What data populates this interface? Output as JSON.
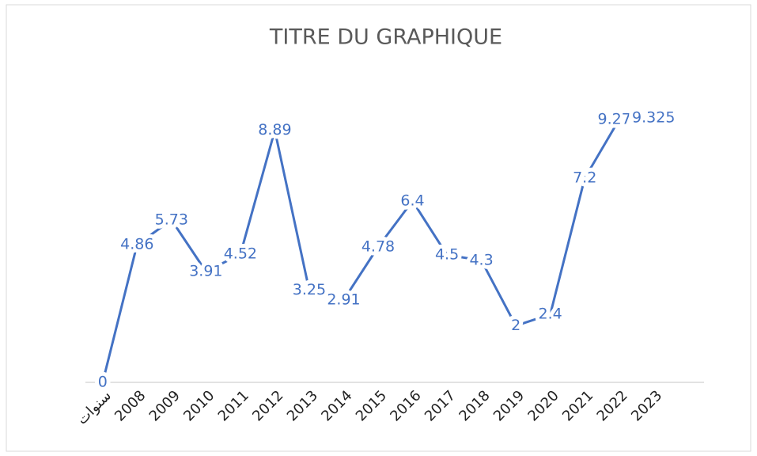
{
  "chart_data": {
    "type": "line",
    "title": "TITRE DU GRAPHIQUE",
    "categories": [
      "سنوات",
      "2008",
      "2009",
      "2010",
      "2011",
      "2012",
      "2013",
      "2014",
      "2015",
      "2016",
      "2017",
      "2018",
      "2019",
      "2020",
      "2021",
      "2022",
      "2023"
    ],
    "values": [
      0,
      4.86,
      5.73,
      3.91,
      4.52,
      8.89,
      3.25,
      2.91,
      4.78,
      6.4,
      4.5,
      4.3,
      2,
      2.4,
      7.2,
      9.275,
      9.325
    ],
    "color": "#4472c4",
    "ylim": [
      0,
      10
    ]
  }
}
